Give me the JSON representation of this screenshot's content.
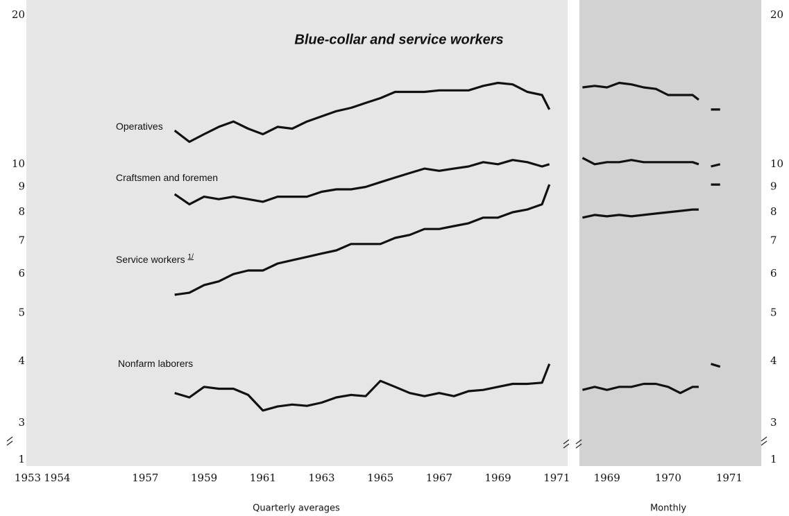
{
  "chart_data": [
    {
      "type": "line",
      "title": "Blue-collar and service workers",
      "x_label": "Quarterly averages",
      "log_y": true,
      "x": [
        1958,
        1958.5,
        1959,
        1959.5,
        1960,
        1960.5,
        1961,
        1961.5,
        1962,
        1962.5,
        1963,
        1963.5,
        1964,
        1964.5,
        1965,
        1965.5,
        1966,
        1966.5,
        1967,
        1967.5,
        1968,
        1968.5,
        1969,
        1969.5,
        1970,
        1970.5,
        1970.75
      ],
      "xlim": [
        1953,
        1971.3
      ],
      "xticks": [
        1953,
        1954,
        1957,
        1959,
        1961,
        1963,
        1965,
        1967,
        1969,
        1971
      ],
      "ylim": [
        3,
        20
      ],
      "yticks": [
        1,
        3,
        4,
        5,
        6,
        7,
        8,
        9,
        10,
        20
      ],
      "series": [
        {
          "name": "Operatives",
          "color": "#111111",
          "values": [
            11.7,
            11.1,
            11.5,
            11.9,
            12.2,
            11.8,
            11.5,
            11.9,
            11.8,
            12.2,
            12.5,
            12.8,
            13.0,
            13.3,
            13.6,
            14.0,
            14.0,
            14.0,
            14.1,
            14.1,
            14.1,
            14.4,
            14.6,
            14.5,
            14.0,
            13.8,
            12.9
          ]
        },
        {
          "name": "Craftsmen and foremen",
          "color": "#111111",
          "values": [
            8.7,
            8.3,
            8.6,
            8.5,
            8.6,
            8.5,
            8.4,
            8.6,
            8.6,
            8.6,
            8.8,
            8.9,
            8.9,
            9.0,
            9.2,
            9.4,
            9.6,
            9.8,
            9.7,
            9.8,
            9.9,
            10.1,
            10.0,
            10.2,
            10.1,
            9.9,
            10.0
          ]
        },
        {
          "name": "Service workers",
          "footnote": "1/",
          "color": "#111111",
          "values": [
            5.45,
            5.5,
            5.7,
            5.8,
            6.0,
            6.1,
            6.1,
            6.3,
            6.4,
            6.5,
            6.6,
            6.7,
            6.9,
            6.9,
            6.9,
            7.1,
            7.2,
            7.4,
            7.4,
            7.5,
            7.6,
            7.8,
            7.8,
            8.0,
            8.1,
            8.3,
            9.1
          ]
        },
        {
          "name": "Nonfarm laborers",
          "color": "#111111",
          "values": [
            3.45,
            3.38,
            3.55,
            3.52,
            3.52,
            3.42,
            3.18,
            3.24,
            3.27,
            3.25,
            3.3,
            3.38,
            3.42,
            3.4,
            3.65,
            3.55,
            3.45,
            3.4,
            3.45,
            3.4,
            3.48,
            3.5,
            3.55,
            3.6,
            3.6,
            3.62,
            3.95
          ]
        }
      ]
    },
    {
      "type": "line",
      "x_label": "Monthly",
      "log_y": true,
      "x": [
        1968.6,
        1968.8,
        1969,
        1969.2,
        1969.4,
        1969.6,
        1969.8,
        1970,
        1970.2,
        1970.4,
        1970.5,
        1970.6,
        1970.7,
        1970.85
      ],
      "xlim": [
        1968.55,
        1971.5
      ],
      "xticks": [
        1969,
        1970,
        1971
      ],
      "ylim": [
        3,
        20
      ],
      "yticks": [
        1,
        3,
        4,
        5,
        6,
        7,
        8,
        9,
        10,
        20
      ],
      "series": [
        {
          "color": "#111111",
          "values": [
            14.3,
            14.4,
            14.3,
            14.6,
            14.5,
            14.3,
            14.2,
            13.8,
            13.8,
            13.8,
            13.5,
            null,
            12.9,
            12.9
          ]
        },
        {
          "color": "#111111",
          "values": [
            10.3,
            10.0,
            10.1,
            10.1,
            10.2,
            10.1,
            10.1,
            10.1,
            10.1,
            10.1,
            10.0,
            null,
            9.9,
            10.0
          ]
        },
        {
          "color": "#111111",
          "values": [
            7.8,
            7.9,
            7.85,
            7.9,
            7.85,
            7.9,
            7.95,
            8.0,
            8.05,
            8.1,
            8.1,
            null,
            9.1,
            9.1
          ]
        },
        {
          "color": "#111111",
          "values": [
            3.5,
            3.55,
            3.5,
            3.55,
            3.55,
            3.6,
            3.6,
            3.55,
            3.45,
            3.55,
            3.55,
            null,
            3.95,
            3.9
          ]
        }
      ]
    }
  ]
}
